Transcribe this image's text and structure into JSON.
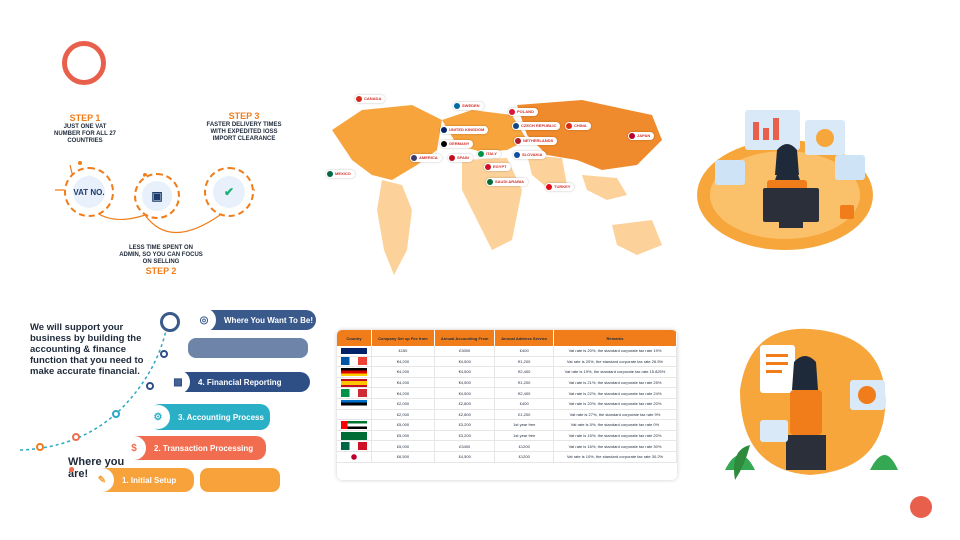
{
  "step1": {
    "title": "STEP 1",
    "text": "JUST ONE VAT NUMBER FOR ALL 27 COUNTRIES",
    "icon_label": "VAT NO."
  },
  "step2": {
    "title": "STEP 2",
    "text": "LESS TIME SPENT ON ADMIN, SO YOU CAN FOCUS ON SELLING"
  },
  "step3": {
    "title": "STEP 3",
    "text": "FASTER DELIVERY TIMES WITH EXPEDITED IOSS IMPORT CLEARANCE"
  },
  "map_tags": [
    {
      "label": "CANADA",
      "color": "#d52b1e"
    },
    {
      "label": "SWEDEN",
      "color": "#006aa7"
    },
    {
      "label": "POLAND",
      "color": "#dc143c"
    },
    {
      "label": "UNITED KINGDOM",
      "color": "#012169"
    },
    {
      "label": "CZECH REPUBLIC",
      "color": "#11457e"
    },
    {
      "label": "CHINA",
      "color": "#de2910"
    },
    {
      "label": "JAPAN",
      "color": "#bc002d"
    },
    {
      "label": "NETHERLANDS",
      "color": "#ae1c28"
    },
    {
      "label": "GERMANY",
      "color": "#000000"
    },
    {
      "label": "ITALY",
      "color": "#009246"
    },
    {
      "label": "SLOVAKIA",
      "color": "#0b4ea2"
    },
    {
      "label": "AMERICA",
      "color": "#3c3b6e"
    },
    {
      "label": "SPAIN",
      "color": "#c60b1e"
    },
    {
      "label": "EGYPT",
      "color": "#ce1126"
    },
    {
      "label": "TURKEY",
      "color": "#e30a17"
    },
    {
      "label": "MEXICO",
      "color": "#006847"
    },
    {
      "label": "SAUDI ARABIA",
      "color": "#006c35"
    }
  ],
  "support_heading": "We will support your business by building the accounting & finance function that you need to make accurate financial.",
  "where_you_are": "Where you are!",
  "roadmap": [
    {
      "label": "Where You Want To Be!",
      "color": "#3a5a8c"
    },
    {
      "label": "4. Financial Reporting",
      "color": "#2e4f86"
    },
    {
      "label": "3. Accounting Process",
      "color": "#2ab0c6"
    },
    {
      "label": "2. Transaction Processing",
      "color": "#f26d4f"
    },
    {
      "label": "1. Initial Setup",
      "color": "#f7a23b"
    }
  ],
  "table": {
    "headers": [
      "Country",
      "Company Set up Fee from",
      "Annual Accounting From",
      "Annual Address Service",
      "Remarks"
    ],
    "rows": [
      {
        "flag": "uk",
        "c1": "£150",
        "c2": "£3000",
        "c3": "£400",
        "c4": "Vat rate is 20%, the standard corporate tax rate 19%"
      },
      {
        "flag": "fr",
        "c1": "€4,200",
        "c2": "€4,500",
        "c3": "€1,200",
        "c4": "Vat rate is 20%, the standard corporate tax rate 26.5%"
      },
      {
        "flag": "de",
        "c1": "€4,200",
        "c2": "€4,500",
        "c3": "€2,400",
        "c4": "Vat rate is 19%, the standard corporate tax rate 15.825%"
      },
      {
        "flag": "es",
        "c1": "€4,200",
        "c2": "€4,500",
        "c3": "€1,200",
        "c4": "Vat rate is 21%, the standard corporate tax rate 25%"
      },
      {
        "flag": "it",
        "c1": "€4,200",
        "c2": "€4,500",
        "c3": "€2,400",
        "c4": "Vat rate is 22%, the standard corporate tax rate 24%"
      },
      {
        "flag": "ee",
        "c1": "£2,000",
        "c2": "£2,800",
        "c3": "£400",
        "c4": "Vat rate is 20%, the standard corporate tax rate 20%"
      },
      {
        "flag": "cy",
        "c1": "£2,000",
        "c2": "£2,800",
        "c3": "£1,200",
        "c4": "Vat rate is 27%, the standard corporate tax rate 9%"
      },
      {
        "flag": "ae",
        "c1": "£5,000",
        "c2": "£3,200",
        "c3": "1st year free",
        "c4": "Vat rate is 5%, the standard corporate tax rate 0%"
      },
      {
        "flag": "sa",
        "c1": "£5,000",
        "c2": "£3,200",
        "c3": "1st year free",
        "c4": "Vat rate is 15%, the standard corporate tax rate 20%"
      },
      {
        "flag": "mx",
        "c1": "£5,000",
        "c2": "£3400",
        "c3": "£1200",
        "c4": "Vat rate is 16%, the standard corporate tax rate 30%"
      },
      {
        "flag": "jp",
        "c1": "£6,500",
        "c2": "£4,500",
        "c3": "£1200",
        "c4": "Vat rate is 10%, the standard corporate tax rate 30.2%"
      }
    ]
  }
}
